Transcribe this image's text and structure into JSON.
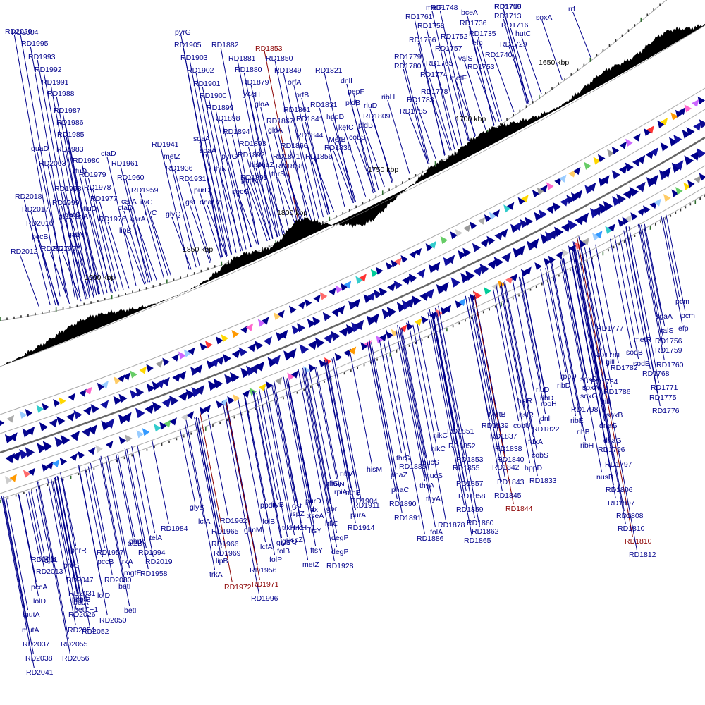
{
  "colors": {
    "label": "#00008b",
    "highlight": "#8b0000",
    "forward_gene": "#00008b",
    "ring_outline": "#aaaaaa",
    "gc_skew": "#000000",
    "tick_minor": "#333333",
    "tick_major": "#2e6b2e"
  },
  "scale": {
    "kbp_labels": [
      "1650 kbp",
      "1700 kbp",
      "1750 kbp",
      "1800 kbp",
      "1850 kbp",
      "1900 kbp"
    ]
  },
  "outer_labels": [
    {
      "text": "rrf"
    },
    {
      "text": "RD1700"
    },
    {
      "text": "soxA"
    },
    {
      "text": "RD1715"
    },
    {
      "text": "RD1713"
    },
    {
      "text": "RD1716"
    },
    {
      "text": "hutC"
    },
    {
      "text": "RD1748"
    },
    {
      "text": "bceA"
    },
    {
      "text": "metF"
    },
    {
      "text": "RD1761"
    },
    {
      "text": "RD1736"
    },
    {
      "text": "RD1758"
    },
    {
      "text": "RD1735"
    },
    {
      "text": "RD1766"
    },
    {
      "text": "RD1752"
    },
    {
      "text": "efp"
    },
    {
      "text": "RD1729"
    },
    {
      "text": "RD1757"
    },
    {
      "text": "RD1740"
    },
    {
      "text": "valS"
    },
    {
      "text": "RD1779"
    },
    {
      "text": "RD1780"
    },
    {
      "text": "RD1765"
    },
    {
      "text": "RD1753"
    },
    {
      "text": "RD1774"
    },
    {
      "text": "metF"
    },
    {
      "text": "RD1778"
    },
    {
      "text": "RD1783"
    },
    {
      "text": "ribH"
    },
    {
      "text": "RD1785"
    },
    {
      "text": "RD1821"
    },
    {
      "text": "dnlI"
    },
    {
      "text": "pepF"
    },
    {
      "text": "pldB"
    },
    {
      "text": "rluD"
    },
    {
      "text": "RD1809"
    },
    {
      "text": "pldB"
    },
    {
      "text": "cobS"
    },
    {
      "text": "kefC"
    },
    {
      "text": "hppD"
    },
    {
      "text": "MetB"
    },
    {
      "text": "RD1836"
    },
    {
      "text": "RD1831"
    },
    {
      "text": "RD1841"
    },
    {
      "text": "RD1844"
    },
    {
      "text": "RD1856"
    },
    {
      "text": "orfB"
    },
    {
      "text": "orfA"
    },
    {
      "text": "RD1849"
    },
    {
      "text": "RD1850"
    },
    {
      "text": "RD1853",
      "hl": true
    },
    {
      "text": "RD1861"
    },
    {
      "text": "RD1867"
    },
    {
      "text": "RD1866"
    },
    {
      "text": "RD1871"
    },
    {
      "text": "RD1868"
    },
    {
      "text": "gloA"
    },
    {
      "text": "gloA"
    },
    {
      "text": "y4cH"
    },
    {
      "text": "RD1879"
    },
    {
      "text": "RD1880"
    },
    {
      "text": "RD1881"
    },
    {
      "text": "RD1882"
    },
    {
      "text": "RD1894"
    },
    {
      "text": "RD1893"
    },
    {
      "text": "RD1892"
    },
    {
      "text": "hisM"
    },
    {
      "text": "phaZ"
    },
    {
      "text": "RD1895"
    },
    {
      "text": "thrS"
    },
    {
      "text": "secG"
    },
    {
      "text": "purA"
    },
    {
      "text": "pyrG"
    },
    {
      "text": "thiN"
    },
    {
      "text": "RD1898"
    },
    {
      "text": "RD1899"
    },
    {
      "text": "RD1900"
    },
    {
      "text": "RD1901"
    },
    {
      "text": "RD1902"
    },
    {
      "text": "RD1903"
    },
    {
      "text": "RD1905"
    },
    {
      "text": "pyrG"
    },
    {
      "text": "sdaA"
    },
    {
      "text": "sdaA"
    },
    {
      "text": "RD1941"
    },
    {
      "text": "metZ"
    },
    {
      "text": "RD1936"
    },
    {
      "text": "RD1931"
    },
    {
      "text": "purD"
    },
    {
      "text": "gst"
    },
    {
      "text": "dnaE2"
    },
    {
      "text": "glyQ"
    },
    {
      "text": "ctaD"
    },
    {
      "text": "RD1961"
    },
    {
      "text": "RD1960"
    },
    {
      "text": "RD1959"
    },
    {
      "text": "carA"
    },
    {
      "text": "ilvC"
    },
    {
      "text": "ctaD"
    },
    {
      "text": "ilvC"
    },
    {
      "text": "carA"
    },
    {
      "text": "lipB"
    },
    {
      "text": "RD1976"
    },
    {
      "text": "RD1977"
    },
    {
      "text": "RD1978"
    },
    {
      "text": "RD1979"
    },
    {
      "text": "RD1980"
    },
    {
      "text": "ttuD"
    },
    {
      "text": "ttuD"
    },
    {
      "text": "RD1997"
    },
    {
      "text": "RD1998"
    },
    {
      "text": "RD1999"
    },
    {
      "text": "gatA"
    },
    {
      "text": "gatC"
    },
    {
      "text": "telA"
    },
    {
      "text": "gatA"
    },
    {
      "text": "RD2003"
    },
    {
      "text": "guaD"
    },
    {
      "text": "RD1983"
    },
    {
      "text": "RD1985"
    },
    {
      "text": "RD1986"
    },
    {
      "text": "RD1987"
    },
    {
      "text": "RD1988"
    },
    {
      "text": "RD1991"
    },
    {
      "text": "RD1992"
    },
    {
      "text": "RD1993"
    },
    {
      "text": "RD1995"
    },
    {
      "text": "RD2004"
    },
    {
      "text": "RD2020"
    },
    {
      "text": "RD2018"
    },
    {
      "text": "RD2017"
    },
    {
      "text": "RD2016"
    },
    {
      "text": "pccB"
    },
    {
      "text": "RD2012"
    },
    {
      "text": "RD2027"
    }
  ],
  "inner_labels": [
    {
      "text": "pcm"
    },
    {
      "text": "sgaA"
    },
    {
      "text": "pcm"
    },
    {
      "text": "efp"
    },
    {
      "text": "valS"
    },
    {
      "text": "RD1777"
    },
    {
      "text": "metR"
    },
    {
      "text": "RD1756"
    },
    {
      "text": "RD1759"
    },
    {
      "text": "sodB"
    },
    {
      "text": "RD1781"
    },
    {
      "text": "sodB"
    },
    {
      "text": "RD1760"
    },
    {
      "text": "RD1768"
    },
    {
      "text": "RD1782"
    },
    {
      "text": "gill"
    },
    {
      "text": "rpoD"
    },
    {
      "text": "soxD"
    },
    {
      "text": "ribD"
    },
    {
      "text": "soxA"
    },
    {
      "text": "RD1784"
    },
    {
      "text": "RD1771"
    },
    {
      "text": "RD1786"
    },
    {
      "text": "soxG"
    },
    {
      "text": "RD1775"
    },
    {
      "text": "gill"
    },
    {
      "text": "rluD"
    },
    {
      "text": "hslR"
    },
    {
      "text": "ribD"
    },
    {
      "text": "RD1776"
    },
    {
      "text": "rpoH"
    },
    {
      "text": "RD1798"
    },
    {
      "text": "soxB"
    },
    {
      "text": "ribE"
    },
    {
      "text": "dnaG"
    },
    {
      "text": "hslR"
    },
    {
      "text": "dnlI"
    },
    {
      "text": "MetB"
    },
    {
      "text": "RD1839"
    },
    {
      "text": "cobU"
    },
    {
      "text": "RD1822"
    },
    {
      "text": "ribB"
    },
    {
      "text": "dnaG"
    },
    {
      "text": "RD1837"
    },
    {
      "text": "fdxA"
    },
    {
      "text": "ribH"
    },
    {
      "text": "RD1796"
    },
    {
      "text": "RD1851"
    },
    {
      "text": "nikC"
    },
    {
      "text": "RD1838"
    },
    {
      "text": "cobS"
    },
    {
      "text": "RD1852"
    },
    {
      "text": "nikC"
    },
    {
      "text": "RD1840"
    },
    {
      "text": "RD1797"
    },
    {
      "text": "RD1853"
    },
    {
      "text": "hppD"
    },
    {
      "text": "RD1842"
    },
    {
      "text": "thrS"
    },
    {
      "text": "RD1855"
    },
    {
      "text": "mucS"
    },
    {
      "text": "RD1885"
    },
    {
      "text": "RD1833"
    },
    {
      "text": "RD1843"
    },
    {
      "text": "nusB"
    },
    {
      "text": "phaZ"
    },
    {
      "text": "mucS"
    },
    {
      "text": "RD1857"
    },
    {
      "text": "thyA"
    },
    {
      "text": "hisM"
    },
    {
      "text": "RD1806"
    },
    {
      "text": "phaC"
    },
    {
      "text": "RD1845"
    },
    {
      "text": "RD1858"
    },
    {
      "text": "nthA"
    },
    {
      "text": "thiN"
    },
    {
      "text": "RD1807"
    },
    {
      "text": "thyA"
    },
    {
      "text": "RD1904"
    },
    {
      "text": "nthB"
    },
    {
      "text": "RD1890"
    },
    {
      "text": "RD1844",
      "hl": true
    },
    {
      "text": "RD1859"
    },
    {
      "text": "hflC"
    },
    {
      "text": "RD1808"
    },
    {
      "text": "rpiA"
    },
    {
      "text": "RD1911"
    },
    {
      "text": "folA"
    },
    {
      "text": "RD1891"
    },
    {
      "text": "purD"
    },
    {
      "text": "gor"
    },
    {
      "text": "purA"
    },
    {
      "text": "RD1810"
    },
    {
      "text": "RD1860"
    },
    {
      "text": "RD1878"
    },
    {
      "text": "fdx"
    },
    {
      "text": "hflC"
    },
    {
      "text": "ispZ"
    },
    {
      "text": "RD1862"
    },
    {
      "text": "RD1914"
    },
    {
      "text": "ilvB"
    },
    {
      "text": "xseA"
    },
    {
      "text": "gst"
    },
    {
      "text": "ppdK"
    },
    {
      "text": "RD1810",
      "hl": true
    },
    {
      "text": "RD1865"
    },
    {
      "text": "ftsY"
    },
    {
      "text": "degP"
    },
    {
      "text": "RD1886"
    },
    {
      "text": "trkH−1"
    },
    {
      "text": "trkH−1"
    },
    {
      "text": "degP"
    },
    {
      "text": "RD1812"
    },
    {
      "text": "ftsY"
    },
    {
      "text": "folB"
    },
    {
      "text": "ispZ"
    },
    {
      "text": "glyS"
    },
    {
      "text": "RD1928"
    },
    {
      "text": "glmM"
    },
    {
      "text": "RD1962"
    },
    {
      "text": "glyQ"
    },
    {
      "text": "metZ"
    },
    {
      "text": "RD1965"
    },
    {
      "text": "lcfA"
    },
    {
      "text": "folB"
    },
    {
      "text": "glyS"
    },
    {
      "text": "lcfA"
    },
    {
      "text": "RD1966"
    },
    {
      "text": "folP"
    },
    {
      "text": "RD1969"
    },
    {
      "text": "RD1984"
    },
    {
      "text": "lipB"
    },
    {
      "text": "telA"
    },
    {
      "text": "RD1956"
    },
    {
      "text": "phrR"
    },
    {
      "text": "RD1994"
    },
    {
      "text": "trkA"
    },
    {
      "text": "RD1971",
      "hl": true
    },
    {
      "text": "RD1957"
    },
    {
      "text": "RD2019"
    },
    {
      "text": "atzB"
    },
    {
      "text": "mgtE"
    },
    {
      "text": "RD1972",
      "hl": true
    },
    {
      "text": "RD1996"
    },
    {
      "text": "RD1958"
    },
    {
      "text": "phrR"
    },
    {
      "text": "pccB"
    },
    {
      "text": "trkA"
    },
    {
      "text": "atzB"
    },
    {
      "text": "betI"
    },
    {
      "text": "djlA"
    },
    {
      "text": "RD2011"
    },
    {
      "text": "proS"
    },
    {
      "text": "RD2030"
    },
    {
      "text": "betI"
    },
    {
      "text": "RD2013"
    },
    {
      "text": "RD2047"
    },
    {
      "text": "RD2031"
    },
    {
      "text": "lolD"
    },
    {
      "text": "betB"
    },
    {
      "text": "pccA"
    },
    {
      "text": "betA"
    },
    {
      "text": "lolD"
    },
    {
      "text": "pccA"
    },
    {
      "text": "betC−1"
    },
    {
      "text": "RD2050"
    },
    {
      "text": "mutA"
    },
    {
      "text": "RD2026"
    },
    {
      "text": "RD2052"
    },
    {
      "text": "mutA"
    },
    {
      "text": "RD2054"
    },
    {
      "text": "RD2037"
    },
    {
      "text": "RD2055"
    },
    {
      "text": "RD2038"
    },
    {
      "text": "RD2056"
    },
    {
      "text": "RD2041"
    }
  ]
}
